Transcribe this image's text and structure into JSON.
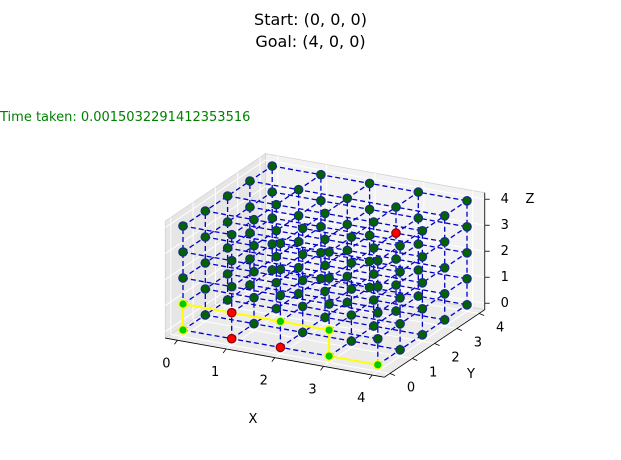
{
  "chart_data": {
    "type": "scatter",
    "projection": "3d",
    "title_lines": [
      "Start: (0, 0, 0)",
      "Goal: (4, 0, 0)"
    ],
    "annotation": "Time taken: 0.0015032291412353516",
    "xlabel": "X",
    "ylabel": "Y",
    "zlabel": "Z",
    "xlim": [
      0,
      4
    ],
    "ylim": [
      0,
      4
    ],
    "zlim": [
      0,
      4
    ],
    "xticks": [
      "0",
      "1",
      "2",
      "3",
      "4"
    ],
    "yticks": [
      "0",
      "1",
      "2",
      "3",
      "4"
    ],
    "zticks": [
      "0",
      "1",
      "2",
      "3",
      "4"
    ],
    "grid": true,
    "grid_nodes": {
      "x": [
        0,
        1,
        2,
        3,
        4
      ],
      "y": [
        0,
        1,
        2,
        3,
        4
      ],
      "z": [
        0,
        1,
        2,
        3,
        4
      ],
      "edge_color": "#0000cc",
      "edge_style": "dashed",
      "node_fill": "#006400",
      "node_edge": "#1b2a88"
    },
    "obstacles": {
      "color": "#ff0000",
      "points": [
        [
          1,
          0,
          0
        ],
        [
          2,
          0,
          0
        ],
        [
          1,
          0,
          1
        ],
        [
          3,
          3,
          3
        ]
      ]
    },
    "path": {
      "color": "#ffff00",
      "node_fill": "#00cc00",
      "points": [
        [
          0,
          0,
          0
        ],
        [
          0,
          0,
          1
        ],
        [
          1,
          0,
          1
        ],
        [
          2,
          0,
          1
        ],
        [
          3,
          0,
          1
        ],
        [
          3,
          0,
          0
        ],
        [
          4,
          0,
          0
        ]
      ]
    },
    "pane_color": "#f2f2f2",
    "pane_edge_color": "#d3d3d3"
  }
}
